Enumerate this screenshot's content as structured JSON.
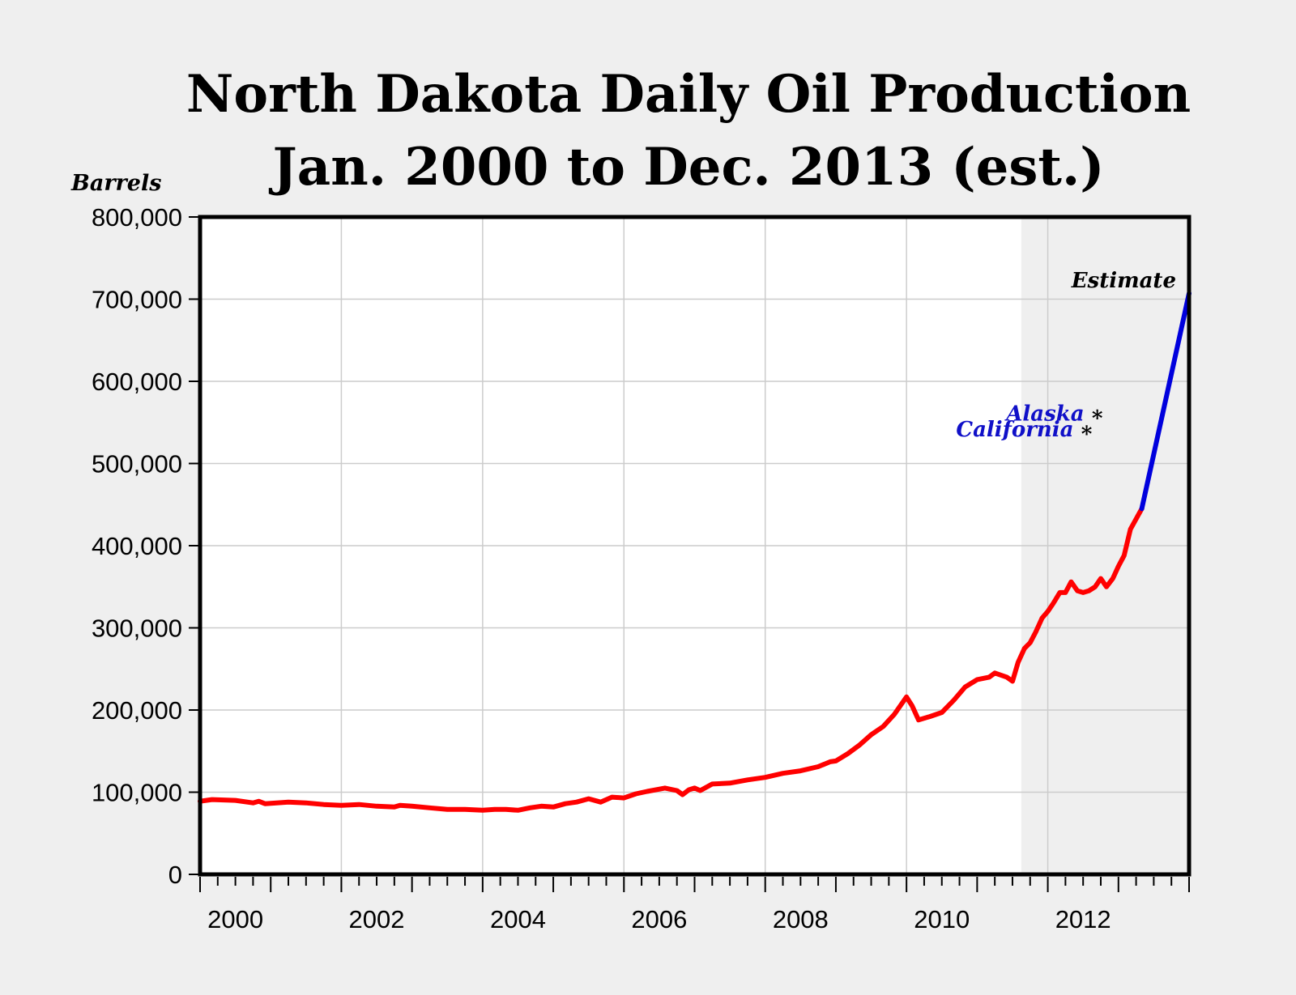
{
  "chart_data": {
    "type": "line",
    "title_line1": "North Dakota Daily Oil Production",
    "title_line2": "Jan. 2000 to Dec. 2013 (est.)",
    "ylabel": "Barrels",
    "xlabel": "",
    "xlim": [
      2000.0,
      2014.0
    ],
    "ylim": [
      0,
      800000
    ],
    "grid": true,
    "y_ticks": [
      {
        "value": 0,
        "label": "0"
      },
      {
        "value": 100000,
        "label": "100,000"
      },
      {
        "value": 200000,
        "label": "200,000"
      },
      {
        "value": 300000,
        "label": "300,000"
      },
      {
        "value": 400000,
        "label": "400,000"
      },
      {
        "value": 500000,
        "label": "500,000"
      },
      {
        "value": 600000,
        "label": "600,000"
      },
      {
        "value": 700000,
        "label": "700,000"
      },
      {
        "value": 800000,
        "label": "800,000"
      }
    ],
    "x_ticks": [
      {
        "value": 2000,
        "label": "2000"
      },
      {
        "value": 2002,
        "label": "2002"
      },
      {
        "value": 2004,
        "label": "2004"
      },
      {
        "value": 2006,
        "label": "2006"
      },
      {
        "value": 2008,
        "label": "2008"
      },
      {
        "value": 2010,
        "label": "2010"
      },
      {
        "value": 2012,
        "label": "2012"
      }
    ],
    "estimate_region": {
      "start": 2011.625,
      "end": 2014.0,
      "label": "Estimate"
    },
    "series": [
      {
        "color": "#ff0000",
        "points": [
          [
            2000.0,
            89000
          ],
          [
            2000.17,
            91000
          ],
          [
            2000.5,
            90000
          ],
          [
            2000.75,
            87000
          ],
          [
            2000.83,
            89000
          ],
          [
            2000.92,
            86000
          ],
          [
            2001.25,
            88000
          ],
          [
            2001.5,
            87000
          ],
          [
            2001.75,
            85000
          ],
          [
            2002.0,
            84000
          ],
          [
            2002.25,
            85000
          ],
          [
            2002.5,
            83000
          ],
          [
            2002.75,
            82000
          ],
          [
            2002.83,
            84000
          ],
          [
            2003.0,
            83000
          ],
          [
            2003.25,
            81000
          ],
          [
            2003.5,
            79000
          ],
          [
            2003.75,
            79000
          ],
          [
            2004.0,
            78000
          ],
          [
            2004.17,
            79000
          ],
          [
            2004.33,
            79000
          ],
          [
            2004.5,
            78000
          ],
          [
            2004.67,
            81000
          ],
          [
            2004.83,
            83000
          ],
          [
            2005.0,
            82000
          ],
          [
            2005.17,
            86000
          ],
          [
            2005.33,
            88000
          ],
          [
            2005.5,
            92000
          ],
          [
            2005.67,
            88000
          ],
          [
            2005.83,
            94000
          ],
          [
            2006.0,
            93000
          ],
          [
            2006.17,
            98000
          ],
          [
            2006.33,
            101000
          ],
          [
            2006.58,
            105000
          ],
          [
            2006.75,
            102000
          ],
          [
            2006.83,
            97000
          ],
          [
            2006.92,
            103000
          ],
          [
            2007.0,
            105000
          ],
          [
            2007.08,
            102000
          ],
          [
            2007.25,
            110000
          ],
          [
            2007.5,
            111000
          ],
          [
            2007.75,
            115000
          ],
          [
            2008.0,
            118000
          ],
          [
            2008.25,
            123000
          ],
          [
            2008.5,
            126000
          ],
          [
            2008.75,
            131000
          ],
          [
            2008.92,
            137000
          ],
          [
            2009.0,
            138000
          ],
          [
            2009.17,
            147000
          ],
          [
            2009.33,
            157000
          ],
          [
            2009.5,
            170000
          ],
          [
            2009.67,
            180000
          ],
          [
            2009.83,
            195000
          ],
          [
            2010.0,
            216000
          ],
          [
            2010.08,
            205000
          ],
          [
            2010.17,
            188000
          ],
          [
            2010.33,
            192000
          ],
          [
            2010.5,
            197000
          ],
          [
            2010.67,
            212000
          ],
          [
            2010.83,
            228000
          ],
          [
            2011.0,
            237000
          ],
          [
            2011.17,
            240000
          ],
          [
            2011.25,
            245000
          ],
          [
            2011.42,
            240000
          ],
          [
            2011.5,
            235000
          ],
          [
            2011.58,
            258000
          ],
          [
            2011.67,
            275000
          ],
          [
            2011.75,
            282000
          ],
          [
            2011.83,
            295000
          ],
          [
            2011.92,
            312000
          ],
          [
            2012.0,
            320000
          ],
          [
            2012.08,
            330000
          ],
          [
            2012.17,
            343000
          ],
          [
            2012.25,
            343000
          ],
          [
            2012.33,
            356000
          ],
          [
            2012.42,
            345000
          ],
          [
            2012.5,
            343000
          ],
          [
            2012.58,
            345000
          ],
          [
            2012.67,
            350000
          ],
          [
            2012.75,
            360000
          ],
          [
            2012.83,
            350000
          ],
          [
            2012.92,
            360000
          ],
          [
            2013.0,
            375000
          ],
          [
            2013.08,
            388000
          ],
          [
            2013.17,
            420000
          ],
          [
            2013.33,
            445000
          ]
        ]
      },
      {
        "color": "#0000dd",
        "points": [
          [
            2013.33,
            445000
          ],
          [
            2014.0,
            707000
          ]
        ]
      }
    ],
    "annotations": [
      {
        "text": "Alaska",
        "x": 2012.7,
        "y": 560000,
        "color": "#1010c8"
      },
      {
        "text": "California",
        "x": 2012.55,
        "y": 541000,
        "color": "#1010c8"
      }
    ]
  }
}
